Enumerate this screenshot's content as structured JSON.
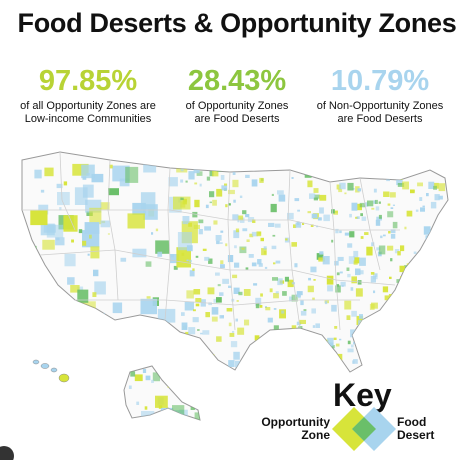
{
  "title": "Food Deserts & Opportunity Zones",
  "stats": [
    {
      "value": "97.85%",
      "line1": "of all Opportunity Zones are",
      "line2": "Low-income Communities",
      "color": "#b8d335"
    },
    {
      "value": "28.43%",
      "line1": "of Opportunity Zones",
      "line2": "are Food Deserts",
      "color": "#8dc63f"
    },
    {
      "value": "10.79%",
      "line1": "of Non-Opportunity Zones",
      "line2": "are Food Deserts",
      "color": "#a8d4ee"
    }
  ],
  "key": {
    "title": "Key",
    "opportunity_line1": "Opportunity",
    "opportunity_line2": "Zone",
    "food_line1": "Food",
    "food_line2": "Desert"
  },
  "colors": {
    "opportunity_zone": "#d7e43a",
    "food_desert": "#a8d4ee",
    "both": "#6abf69",
    "land": "#ffffff",
    "boundary": "#c9c9c9"
  }
}
